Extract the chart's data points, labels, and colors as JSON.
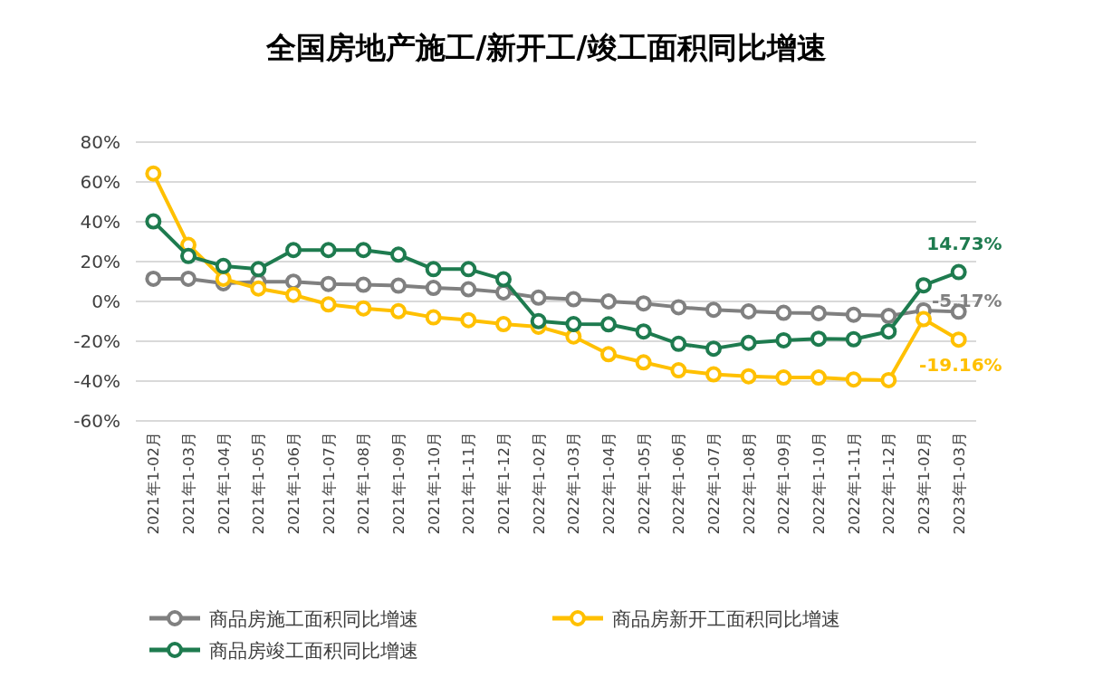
{
  "chart_data": {
    "type": "line",
    "title": "全国房地产施工/新开工/竣工面积同比增速",
    "categories": [
      "2021年1-02月",
      "2021年1-03月",
      "2021年1-04月",
      "2021年1-05月",
      "2021年1-06月",
      "2021年1-07月",
      "2021年1-08月",
      "2021年1-09月",
      "2021年1-10月",
      "2021年1-11月",
      "2021年1-12月",
      "2022年1-02月",
      "2022年1-03月",
      "2022年1-04月",
      "2022年1-05月",
      "2022年1-06月",
      "2022年1-07月",
      "2022年1-08月",
      "2022年1-09月",
      "2022年1-10月",
      "2022年1-11月",
      "2022年1-12月",
      "2023年1-02月",
      "2023年1-03月"
    ],
    "series": [
      {
        "name": "商品房施工面积同比增速",
        "color": "#808080",
        "values": [
          11.4,
          11.4,
          9.1,
          9.9,
          9.9,
          8.8,
          8.4,
          7.9,
          6.8,
          6.1,
          4.6,
          1.9,
          1.1,
          0,
          -1,
          -2.9,
          -4.2,
          -5,
          -5.7,
          -5.9,
          -6.7,
          -7.3,
          -4.5,
          -5.17
        ],
        "value_labels": [
          null,
          null,
          null,
          null,
          null,
          null,
          null,
          null,
          null,
          null,
          null,
          null,
          null,
          null,
          null,
          null,
          null,
          null,
          null,
          null,
          null,
          null,
          null,
          "-5.17%"
        ]
      },
      {
        "name": "商品房新开工面积同比增速",
        "color": "#ffc000",
        "values": [
          64.2,
          28.4,
          11.4,
          6.5,
          3.3,
          -1.5,
          -3.5,
          -4.9,
          -8,
          -9.4,
          -11.4,
          -12.7,
          -17.6,
          -26.5,
          -30.6,
          -34.6,
          -36.6,
          -37.6,
          -38.2,
          -38.2,
          -39.2,
          -39.5,
          -8.9,
          -19.16
        ],
        "value_labels": [
          null,
          null,
          null,
          null,
          null,
          null,
          null,
          null,
          null,
          null,
          null,
          null,
          null,
          null,
          null,
          null,
          null,
          null,
          null,
          null,
          null,
          null,
          null,
          "-19.16%"
        ]
      },
      {
        "name": "商品房竣工面积同比增速",
        "color": "#1e7b4f",
        "values": [
          40.2,
          22.8,
          17.8,
          16.2,
          25.8,
          25.8,
          25.8,
          23.5,
          16.2,
          16.2,
          11.1,
          -9.9,
          -11.4,
          -11.5,
          -15.1,
          -21.3,
          -23.7,
          -20.8,
          -19.5,
          -18.7,
          -19,
          -15.1,
          8.1,
          14.73
        ],
        "value_labels": [
          null,
          null,
          null,
          null,
          null,
          null,
          null,
          null,
          null,
          null,
          null,
          null,
          null,
          null,
          null,
          null,
          null,
          null,
          null,
          null,
          null,
          null,
          null,
          "14.73%"
        ]
      }
    ],
    "ylim": [
      -60,
      80
    ],
    "yticks": [
      {
        "value": -60,
        "label": "-60%"
      },
      {
        "value": -40,
        "label": "-40%"
      },
      {
        "value": -20,
        "label": "-20%"
      },
      {
        "value": 0,
        "label": "0%"
      },
      {
        "value": 20,
        "label": "20%"
      },
      {
        "value": 40,
        "label": "40%"
      },
      {
        "value": 60,
        "label": "60%"
      },
      {
        "value": 80,
        "label": "80%"
      }
    ],
    "grid": "y",
    "legend": "bottom",
    "marker": "circle",
    "line_style": "solid"
  }
}
